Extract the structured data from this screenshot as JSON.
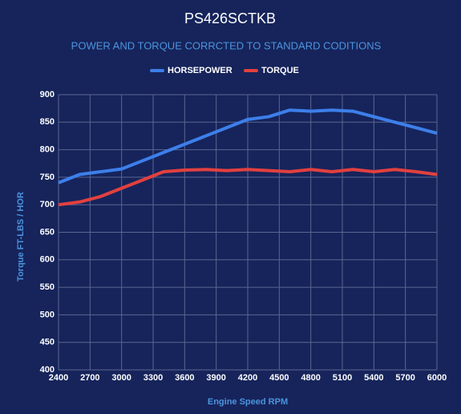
{
  "chart_data": {
    "type": "line",
    "title": "PS426SCTKB",
    "subtitle": "POWER AND TORQUE CORRCTED TO STANDARD CODITIONS",
    "x_label": "Engine Speed RPM",
    "y_label": "Torque FT-LBS / HOR",
    "x": [
      2400,
      2600,
      2800,
      3000,
      3200,
      3400,
      3600,
      3800,
      4000,
      4200,
      4400,
      4600,
      4800,
      5000,
      5200,
      5400,
      5600,
      5800,
      6000
    ],
    "series": [
      {
        "name": "HORSEPOWER",
        "color": "#3d7fea",
        "values": [
          740,
          755,
          760,
          765,
          780,
          795,
          810,
          825,
          840,
          855,
          860,
          872,
          870,
          872,
          870,
          860,
          850,
          840,
          830
        ]
      },
      {
        "name": "TORQUE",
        "color": "#e2403f",
        "values": [
          700,
          705,
          715,
          730,
          745,
          760,
          763,
          764,
          762,
          764,
          762,
          760,
          764,
          760,
          764,
          760,
          764,
          760,
          755
        ]
      }
    ],
    "xlim": [
      2400,
      6000
    ],
    "xticks": [
      2400,
      2700,
      3000,
      3300,
      3600,
      3900,
      4200,
      4500,
      4800,
      5100,
      5400,
      5700,
      6000
    ],
    "ylim": [
      400,
      900
    ],
    "yticks": [
      400,
      450,
      500,
      550,
      600,
      650,
      700,
      750,
      800,
      850,
      900
    ],
    "grid": true,
    "legend_position": "top"
  }
}
